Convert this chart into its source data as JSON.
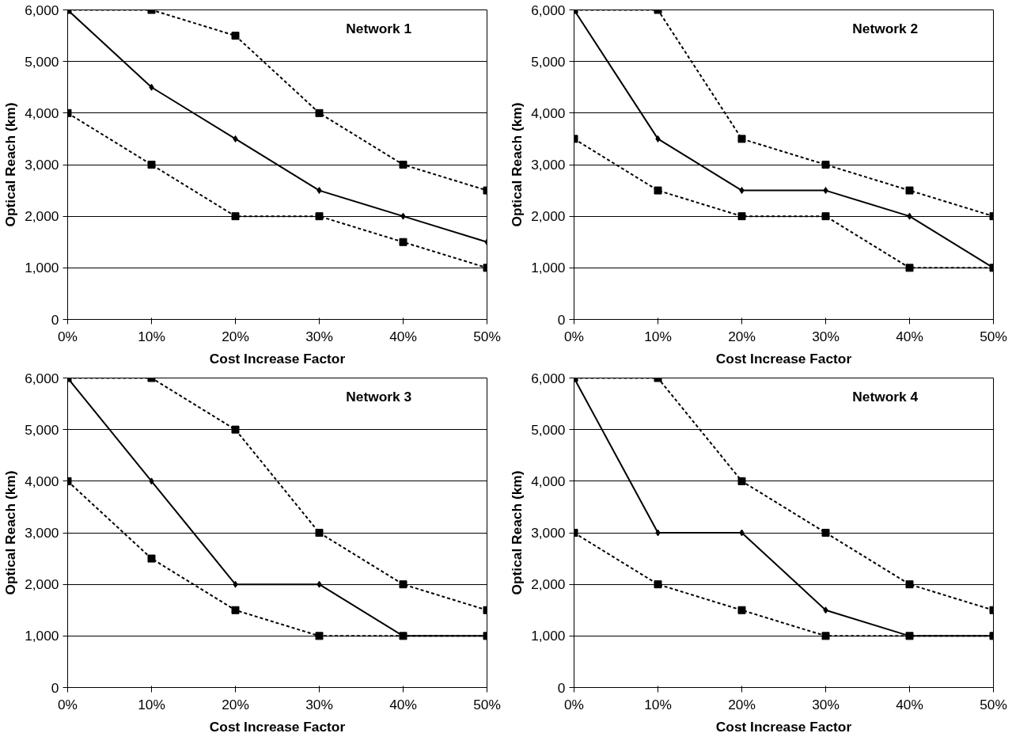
{
  "chart_data": [
    {
      "type": "line",
      "annotations": [
        "Network 1"
      ],
      "xlabel": "Cost Increase Factor",
      "ylabel": "Optical Reach (km)",
      "x": [
        0,
        10,
        20,
        30,
        40,
        50
      ],
      "xlim": [
        0,
        50
      ],
      "ylim": [
        0,
        6000
      ],
      "xticks": [
        {
          "value": 0,
          "label": "0%"
        },
        {
          "value": 10,
          "label": "10%"
        },
        {
          "value": 20,
          "label": "20%"
        },
        {
          "value": 30,
          "label": "30%"
        },
        {
          "value": 40,
          "label": "40%"
        },
        {
          "value": 50,
          "label": "50%"
        }
      ],
      "yticks": [
        0,
        {
          "value": 1000,
          "label": "1,000"
        },
        {
          "value": 2000,
          "label": "2,000"
        },
        {
          "value": 3000,
          "label": "3,000"
        },
        {
          "value": 4000,
          "label": "4,000"
        },
        {
          "value": 5000,
          "label": "5,000"
        },
        {
          "value": 6000,
          "label": "6,000"
        }
      ],
      "grid": "y",
      "series": [
        {
          "color": "#000000",
          "marker": "square",
          "line_style": "dashed",
          "values": [
            6000,
            6000,
            5500,
            4000,
            3000,
            2500
          ]
        },
        {
          "color": "#000000",
          "marker": "diamond",
          "line_style": "solid",
          "values": [
            6000,
            4500,
            3500,
            2500,
            2000,
            1500
          ]
        },
        {
          "color": "#000000",
          "marker": "square",
          "line_style": "dashed",
          "values": [
            4000,
            3000,
            2000,
            2000,
            1500,
            1000
          ]
        }
      ]
    },
    {
      "type": "line",
      "annotations": [
        "Network 2"
      ],
      "xlabel": "Cost Increase Factor",
      "ylabel": "Optical Reach (km)",
      "x": [
        0,
        10,
        20,
        30,
        40,
        50
      ],
      "xlim": [
        0,
        50
      ],
      "ylim": [
        0,
        6000
      ],
      "xticks": [
        {
          "value": 0,
          "label": "0%"
        },
        {
          "value": 10,
          "label": "10%"
        },
        {
          "value": 20,
          "label": "20%"
        },
        {
          "value": 30,
          "label": "30%"
        },
        {
          "value": 40,
          "label": "40%"
        },
        {
          "value": 50,
          "label": "50%"
        }
      ],
      "yticks": [
        0,
        {
          "value": 1000,
          "label": "1,000"
        },
        {
          "value": 2000,
          "label": "2,000"
        },
        {
          "value": 3000,
          "label": "3,000"
        },
        {
          "value": 4000,
          "label": "4,000"
        },
        {
          "value": 5000,
          "label": "5,000"
        },
        {
          "value": 6000,
          "label": "6,000"
        }
      ],
      "grid": "y",
      "series": [
        {
          "color": "#000000",
          "marker": "square",
          "line_style": "dashed",
          "values": [
            6000,
            6000,
            3500,
            3000,
            2500,
            2000
          ]
        },
        {
          "color": "#000000",
          "marker": "diamond",
          "line_style": "solid",
          "values": [
            6000,
            3500,
            2500,
            2500,
            2000,
            1000
          ]
        },
        {
          "color": "#000000",
          "marker": "square",
          "line_style": "dashed",
          "values": [
            3500,
            2500,
            2000,
            2000,
            1000,
            1000
          ]
        }
      ]
    },
    {
      "type": "line",
      "annotations": [
        "Network 3"
      ],
      "xlabel": "Cost Increase Factor",
      "ylabel": "Optical Reach (km)",
      "x": [
        0,
        10,
        20,
        30,
        40,
        50
      ],
      "xlim": [
        0,
        50
      ],
      "ylim": [
        0,
        6000
      ],
      "xticks": [
        {
          "value": 0,
          "label": "0%"
        },
        {
          "value": 10,
          "label": "10%"
        },
        {
          "value": 20,
          "label": "20%"
        },
        {
          "value": 30,
          "label": "30%"
        },
        {
          "value": 40,
          "label": "40%"
        },
        {
          "value": 50,
          "label": "50%"
        }
      ],
      "yticks": [
        0,
        {
          "value": 1000,
          "label": "1,000"
        },
        {
          "value": 2000,
          "label": "2,000"
        },
        {
          "value": 3000,
          "label": "3,000"
        },
        {
          "value": 4000,
          "label": "4,000"
        },
        {
          "value": 5000,
          "label": "5,000"
        },
        {
          "value": 6000,
          "label": "6,000"
        }
      ],
      "grid": "y",
      "series": [
        {
          "color": "#000000",
          "marker": "square",
          "line_style": "dashed",
          "values": [
            6000,
            6000,
            5000,
            3000,
            2000,
            1500
          ]
        },
        {
          "color": "#000000",
          "marker": "diamond",
          "line_style": "solid",
          "values": [
            6000,
            4000,
            2000,
            2000,
            1000,
            1000
          ]
        },
        {
          "color": "#000000",
          "marker": "square",
          "line_style": "dashed",
          "values": [
            4000,
            2500,
            1500,
            1000,
            1000,
            1000
          ]
        }
      ]
    },
    {
      "type": "line",
      "annotations": [
        "Network 4"
      ],
      "xlabel": "Cost Increase Factor",
      "ylabel": "Optical Reach (km)",
      "x": [
        0,
        10,
        20,
        30,
        40,
        50
      ],
      "xlim": [
        0,
        50
      ],
      "ylim": [
        0,
        6000
      ],
      "xticks": [
        {
          "value": 0,
          "label": "0%"
        },
        {
          "value": 10,
          "label": "10%"
        },
        {
          "value": 20,
          "label": "20%"
        },
        {
          "value": 30,
          "label": "30%"
        },
        {
          "value": 40,
          "label": "40%"
        },
        {
          "value": 50,
          "label": "50%"
        }
      ],
      "yticks": [
        0,
        {
          "value": 1000,
          "label": "1,000"
        },
        {
          "value": 2000,
          "label": "2,000"
        },
        {
          "value": 3000,
          "label": "3,000"
        },
        {
          "value": 4000,
          "label": "4,000"
        },
        {
          "value": 5000,
          "label": "5,000"
        },
        {
          "value": 6000,
          "label": "6,000"
        }
      ],
      "grid": "y",
      "series": [
        {
          "color": "#000000",
          "marker": "square",
          "line_style": "dashed",
          "values": [
            6000,
            6000,
            4000,
            3000,
            2000,
            1500
          ]
        },
        {
          "color": "#000000",
          "marker": "diamond",
          "line_style": "solid",
          "values": [
            6000,
            3000,
            3000,
            1500,
            1000,
            1000
          ]
        },
        {
          "color": "#000000",
          "marker": "square",
          "line_style": "dashed",
          "values": [
            3000,
            2000,
            1500,
            1000,
            1000,
            1000
          ]
        }
      ]
    }
  ]
}
